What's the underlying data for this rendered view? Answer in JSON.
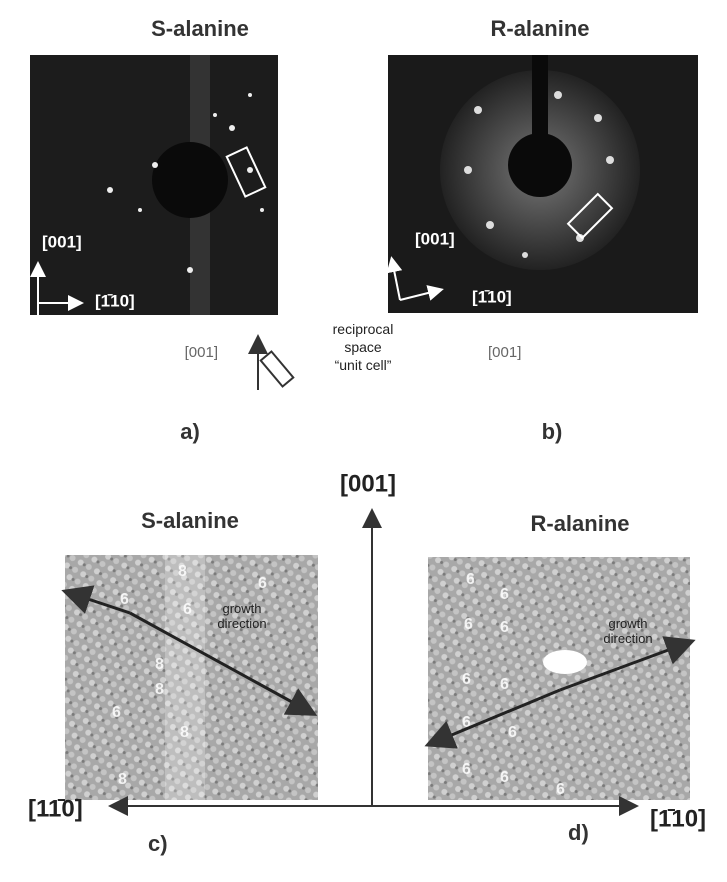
{
  "top": {
    "left_title": "S-alanine",
    "right_title": "R-alanine",
    "panel_a": {
      "dir1": "[001]",
      "dir2": "[1̄10]"
    },
    "panel_b": {
      "dir1": "[001]",
      "dir2": "[1̄10]"
    },
    "legend": {
      "left": "[001]",
      "text": "reciprocal\nspace\n“unit cell”",
      "right": "[001]"
    },
    "caption_a": "a)",
    "caption_b": "b)"
  },
  "bottom": {
    "left_title": "S-alanine",
    "right_title": "R-alanine",
    "axis_up": "[001]",
    "axis_left": "[11̄0]",
    "axis_right": "[1̄10]",
    "panel_c": {
      "labels": [
        "8",
        "6",
        "6",
        "6",
        "8",
        "8",
        "6",
        "8",
        "8"
      ],
      "growth": "growth\ndirection"
    },
    "panel_d": {
      "labels": [
        "6",
        "6",
        "6",
        "6",
        "6",
        "6",
        "6",
        "6",
        "6",
        "6",
        "6"
      ],
      "growth": "growth\ndirection"
    },
    "caption_c": "c)",
    "caption_d": "d)"
  }
}
